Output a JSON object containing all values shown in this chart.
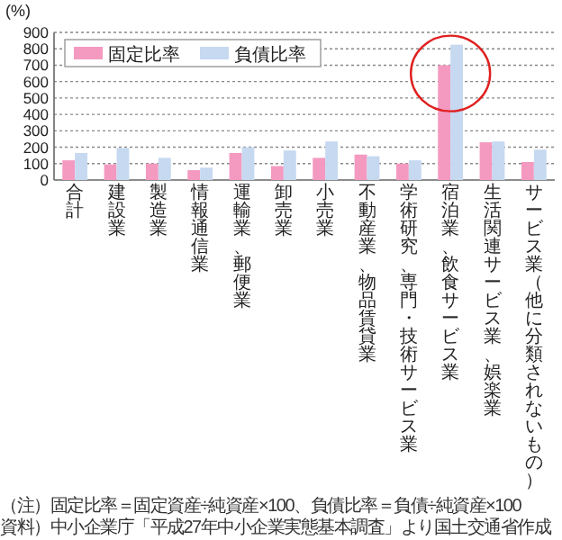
{
  "chart_data": {
    "type": "bar",
    "ylabel": "(%)",
    "categories": [
      "合計",
      "建設業",
      "製造業",
      "情報通信業",
      "運輸業、郵便業",
      "卸売業",
      "小売業",
      "不動産業、物品賃貸業",
      "学術研究、専門・技術サービス業",
      "宿泊業、飲食サービス業",
      "生活関連サービス業、娯楽業",
      "サービス業（他に分類されないもの）"
    ],
    "series": [
      {
        "name": "固定比率",
        "color": "#f49ac1",
        "values": [
          120,
          95,
          100,
          60,
          165,
          85,
          135,
          155,
          100,
          700,
          230,
          110
        ]
      },
      {
        "name": "負債比率",
        "color": "#c6d9f0",
        "values": [
          165,
          195,
          135,
          75,
          200,
          180,
          235,
          145,
          120,
          825,
          235,
          185
        ]
      }
    ],
    "ylim": [
      0,
      900
    ],
    "yticks": [
      0,
      100,
      200,
      300,
      400,
      500,
      600,
      700,
      800,
      900
    ],
    "grid": "y",
    "legend": "top left",
    "annotations": [
      "（注）固定比率＝固定資産÷純資産×100、負債比率＝負債÷純資産×100",
      "資料）中小企業庁「平成27年中小企業実態基本調査」より国土交通省作成"
    ]
  }
}
